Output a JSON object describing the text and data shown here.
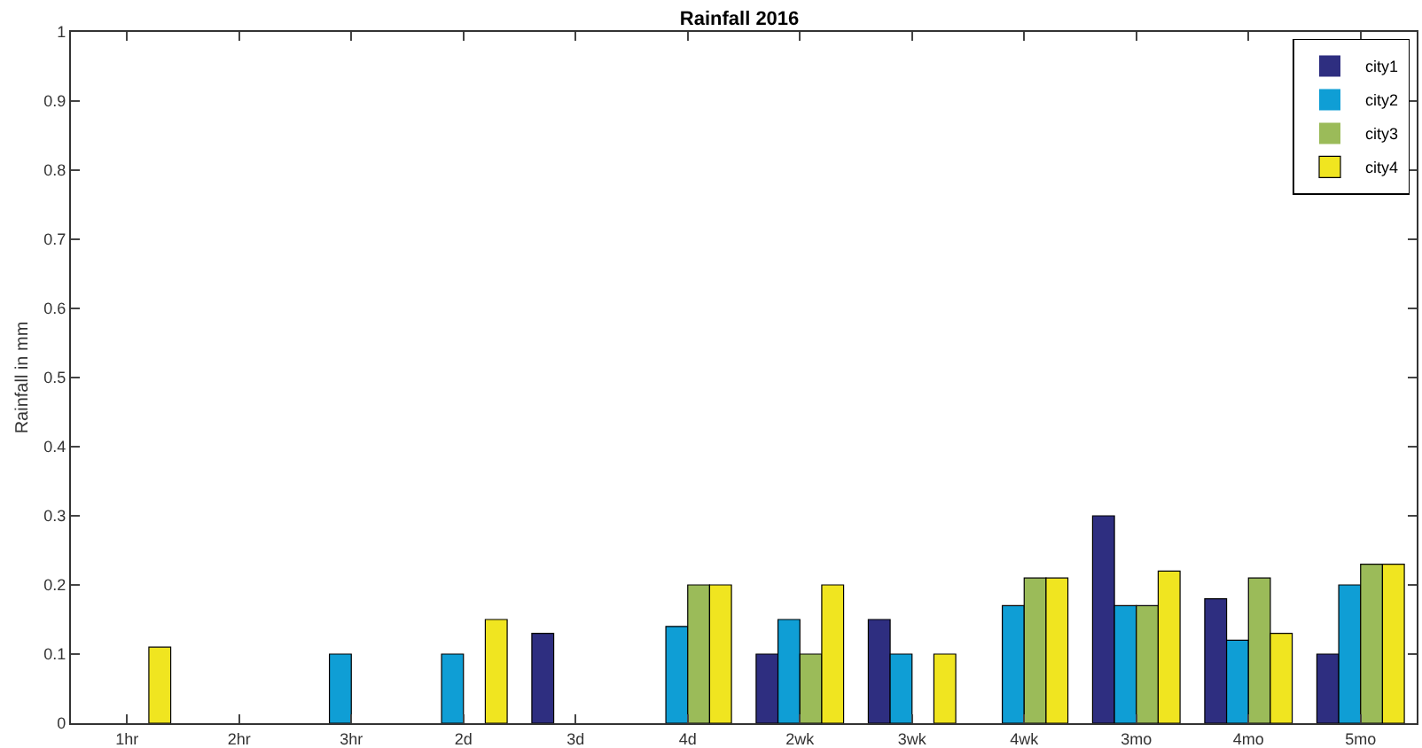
{
  "chart_data": {
    "type": "bar",
    "title": "Rainfall 2016",
    "ylabel": "Rainfall in mm",
    "categories": [
      "1hr",
      "2hr",
      "3hr",
      "2d",
      "3d",
      "4d",
      "2wk",
      "3wk",
      "4wk",
      "3mo",
      "4mo",
      "5mo"
    ],
    "series": [
      {
        "name": "city1",
        "color": "#2e2e80",
        "values": [
          0,
          0,
          0,
          0,
          0.13,
          0,
          0.1,
          0.15,
          0,
          0.3,
          0.18,
          0.1
        ]
      },
      {
        "name": "city2",
        "color": "#0f9ed5",
        "values": [
          0,
          0,
          0.1,
          0.1,
          0,
          0.14,
          0.15,
          0.1,
          0.17,
          0.17,
          0.12,
          0.2
        ]
      },
      {
        "name": "city3",
        "color": "#9bbb59",
        "values": [
          0,
          0,
          0,
          0,
          0,
          0.2,
          0.1,
          0,
          0.21,
          0.17,
          0.21,
          0.23
        ]
      },
      {
        "name": "city4",
        "color": "#f0e520",
        "values": [
          0.11,
          0,
          0,
          0.15,
          0,
          0.2,
          0.2,
          0.1,
          0.21,
          0.22,
          0.13,
          0.23
        ]
      }
    ],
    "ylim": [
      0,
      1
    ],
    "yticks": [
      0,
      0.1,
      0.2,
      0.3,
      0.4,
      0.5,
      0.6,
      0.7,
      0.8,
      0.9,
      1
    ],
    "grid": false,
    "legend": "top right"
  }
}
